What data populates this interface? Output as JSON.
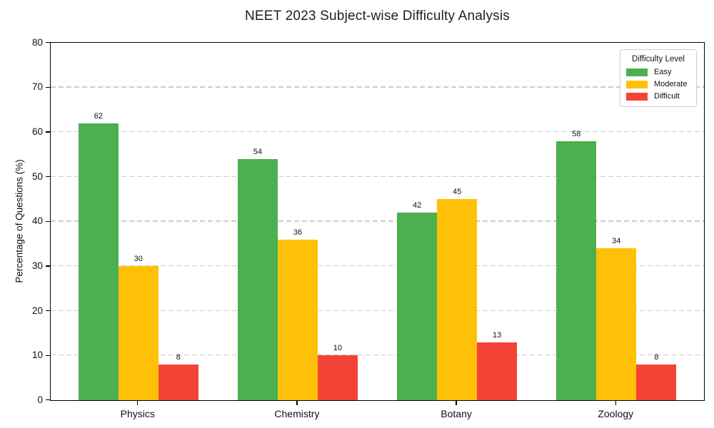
{
  "chart_data": {
    "type": "bar",
    "title": "NEET 2023 Subject-wise Difficulty Analysis",
    "xlabel": "",
    "ylabel": "Percentage of Questions (%)",
    "categories": [
      "Physics",
      "Chemistry",
      "Botany",
      "Zoology"
    ],
    "series": [
      {
        "name": "Easy",
        "color": "#4caf50",
        "values": [
          62,
          54,
          42,
          58
        ]
      },
      {
        "name": "Moderate",
        "color": "#ffc107",
        "values": [
          30,
          36,
          45,
          34
        ]
      },
      {
        "name": "Difficult",
        "color": "#f44336",
        "values": [
          8,
          10,
          13,
          8
        ]
      }
    ],
    "ylim": [
      0,
      80
    ],
    "yticks": [
      0,
      10,
      20,
      30,
      40,
      50,
      60,
      70,
      80
    ],
    "grid": "horizontal-dashed",
    "gridline_color": "#cccccc",
    "bar_value_labels": true,
    "legend": {
      "title": "Difficulty Level",
      "position": "top-right",
      "entries": [
        "Easy",
        "Moderate",
        "Difficult"
      ]
    }
  }
}
